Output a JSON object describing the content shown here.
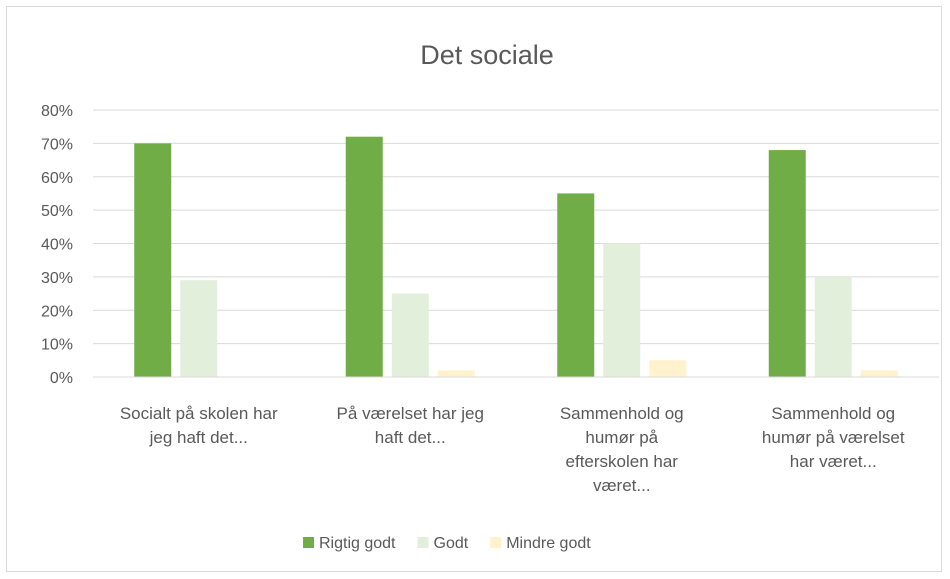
{
  "chart_data": {
    "type": "bar",
    "title": "Det sociale",
    "xlabel": "",
    "ylabel": "",
    "ylim": [
      0,
      0.8
    ],
    "y_ticks": [
      "0%",
      "10%",
      "20%",
      "30%",
      "40%",
      "50%",
      "60%",
      "70%",
      "80%"
    ],
    "grid": true,
    "legend_position": "bottom",
    "categories": [
      [
        "Socialt på skolen har",
        "jeg haft det..."
      ],
      [
        "På værelset har jeg",
        "haft det..."
      ],
      [
        "Sammenhold og",
        "humør på",
        "efterskolen har",
        "været..."
      ],
      [
        "Sammenhold og",
        "humør på værelset",
        "har været..."
      ]
    ],
    "series": [
      {
        "name": "Rigtig godt",
        "color": "#70ad47",
        "values": [
          0.7,
          0.72,
          0.55,
          0.68
        ]
      },
      {
        "name": "Godt",
        "color": "#e2efda",
        "values": [
          0.29,
          0.25,
          0.4,
          0.3
        ]
      },
      {
        "name": "Mindre godt",
        "color": "#fff2cc",
        "values": [
          0.0,
          0.02,
          0.05,
          0.02
        ]
      }
    ]
  }
}
